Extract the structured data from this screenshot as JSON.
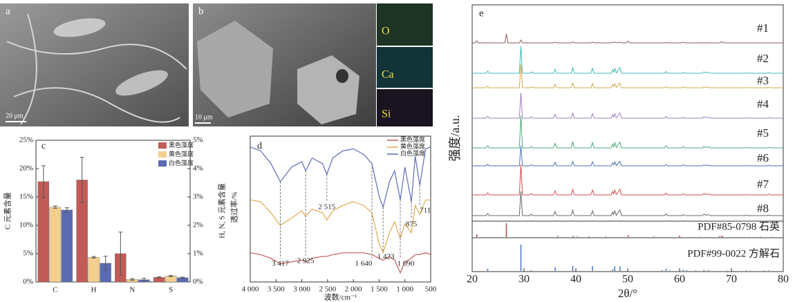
{
  "images": {
    "a": {
      "label": "a",
      "scale": "20 μm"
    },
    "b": {
      "label": "b",
      "scale": "10 μm",
      "maps": [
        "O",
        "Ca",
        "Si"
      ]
    }
  },
  "chart_data": [
    {
      "type": "bar",
      "label": "c",
      "categories": [
        "C",
        "H",
        "N",
        "S"
      ],
      "category_axis": [
        "y",
        "y2",
        "y2",
        "y2"
      ],
      "series": [
        {
          "name": "黑色藻席",
          "color": "#c25b56",
          "values": [
            17.7,
            3.6,
            1.0,
            0.16
          ],
          "errors": [
            2.8,
            0.8,
            0.76,
            0.02
          ]
        },
        {
          "name": "黄色藻席",
          "color": "#f3cf8e",
          "values": [
            13.2,
            0.87,
            0.09,
            0.21
          ],
          "errors": [
            0.2,
            0.03,
            0.03,
            0.02
          ]
        },
        {
          "name": "白色藻席",
          "color": "#5b6bb3",
          "values": [
            12.7,
            0.66,
            0.08,
            0.15
          ],
          "errors": [
            0.4,
            0.25,
            0.05,
            0.02
          ]
        }
      ],
      "ylabel": "C 元素含量",
      "y2label": "H, N, S 元素含量",
      "ylim": [
        0,
        25
      ],
      "yticks": [
        {
          "value": 0,
          "label": "0%"
        },
        {
          "value": 5,
          "label": "5%"
        },
        {
          "value": 10,
          "label": "10%"
        },
        {
          "value": 15,
          "label": "15%"
        },
        {
          "value": 20,
          "label": "20%"
        },
        {
          "value": 25,
          "label": "25%"
        }
      ],
      "y2lim": [
        0,
        5
      ],
      "y2ticks": [
        {
          "value": 0,
          "label": "0%"
        },
        {
          "value": 1,
          "label": "1%"
        },
        {
          "value": 2,
          "label": "2%"
        },
        {
          "value": 3,
          "label": "3%"
        },
        {
          "value": 4,
          "label": "4%"
        },
        {
          "value": 5,
          "label": "5%"
        }
      ]
    },
    {
      "type": "line",
      "label": "d",
      "x": [
        4000,
        3800,
        3600,
        3417,
        3200,
        3000,
        2925,
        2800,
        2600,
        2515,
        2400,
        2200,
        2000,
        1800,
        1640,
        1500,
        1423,
        1300,
        1200,
        1090,
        1000,
        875,
        800,
        711,
        600,
        500
      ],
      "series": [
        {
          "name": "黑色藻席",
          "color": "#c25b56",
          "values": [
            3.1,
            3.0,
            2.8,
            2.5,
            2.6,
            2.7,
            2.6,
            2.8,
            2.9,
            2.9,
            3.0,
            3.1,
            3.1,
            3.1,
            3.0,
            2.8,
            2.7,
            2.9,
            2.7,
            2.0,
            2.6,
            2.8,
            3.0,
            3.0,
            3.1,
            3.0
          ]
        },
        {
          "name": "黄色藻席",
          "color": "#e0a94e",
          "values": [
            6.0,
            5.9,
            5.3,
            4.6,
            5.0,
            5.4,
            5.1,
            5.5,
            5.3,
            4.9,
            5.4,
            5.7,
            5.9,
            5.7,
            5.3,
            3.6,
            3.1,
            4.2,
            4.8,
            3.9,
            4.7,
            4.2,
            5.7,
            5.2,
            6.0,
            6.0
          ]
        },
        {
          "name": "白色藻席",
          "color": "#5b6bb3",
          "values": [
            8.9,
            8.7,
            8.0,
            7.0,
            7.8,
            8.1,
            7.6,
            8.3,
            8.0,
            7.4,
            8.3,
            8.7,
            8.8,
            8.5,
            8.0,
            6.2,
            5.6,
            7.0,
            7.6,
            6.0,
            7.8,
            5.9,
            8.4,
            6.8,
            8.8,
            8.9
          ]
        }
      ],
      "xlim": [
        4000,
        500
      ],
      "ylim": [
        1.5,
        9.5
      ],
      "xticks": [
        {
          "value": 4000,
          "label": "4 000"
        },
        {
          "value": 3500,
          "label": "3 500"
        },
        {
          "value": 3000,
          "label": "3 000"
        },
        {
          "value": 2500,
          "label": "2 500"
        },
        {
          "value": 2000,
          "label": "2 000"
        },
        {
          "value": 1500,
          "label": "1 500"
        },
        {
          "value": 1000,
          "label": "1 000"
        },
        500
      ],
      "xlabel": "波数/cm⁻¹",
      "ylabel": "透过率/%",
      "annotations": [
        {
          "x": 3417,
          "label": "3 417"
        },
        {
          "x": 2925,
          "label": "2 925"
        },
        {
          "x": 2515,
          "label": "2 515"
        },
        {
          "x": 1640,
          "label": "1 640"
        },
        {
          "x": 1423,
          "label": "1 423"
        },
        {
          "x": 1090,
          "label": "1 090"
        },
        {
          "x": 875,
          "label": "875"
        },
        {
          "x": 711,
          "label": "711"
        }
      ]
    },
    {
      "type": "line",
      "label": "e",
      "x": [
        20,
        20.6,
        20.9,
        21.2,
        22.7,
        23.0,
        23.3,
        26.3,
        26.6,
        26.9,
        29.1,
        29.4,
        29.7,
        31.1,
        31.4,
        31.7,
        35.7,
        36.0,
        36.3,
        39.1,
        39.4,
        39.7,
        42.9,
        43.2,
        43.5,
        46.8,
        47.1,
        47.3,
        47.5,
        47.8,
        48.5,
        48.8,
        49.8,
        50.1,
        50.4,
        57.1,
        57.4,
        57.7,
        60.4,
        60.7,
        61.0,
        64.4,
        64.7,
        65.1,
        65.6,
        65.9,
        67.8,
        68.1,
        68.4,
        72.6,
        72.9,
        73.2,
        76.9,
        77.2,
        77.5,
        80
      ],
      "series": [
        {
          "name": "#1",
          "color": "#8b5a5a",
          "values": [
            2,
            2,
            8,
            2,
            2,
            3,
            2,
            2,
            28,
            2,
            2,
            10,
            2,
            2,
            2,
            2,
            2,
            4,
            2,
            2,
            5,
            2,
            2,
            4,
            2,
            2,
            4,
            3,
            4,
            2,
            4,
            2,
            2,
            7,
            2,
            2,
            3,
            2,
            2,
            4,
            2,
            2,
            3,
            2,
            2,
            2,
            2,
            6,
            2,
            2,
            2,
            2,
            2,
            2,
            2,
            2
          ]
        },
        {
          "name": "#2",
          "color": "#3fb8b8",
          "values": [
            2,
            2,
            2,
            2,
            2,
            8,
            2,
            2,
            2,
            2,
            2,
            80,
            2,
            2,
            6,
            2,
            2,
            14,
            2,
            2,
            18,
            2,
            2,
            16,
            2,
            2,
            12,
            5,
            16,
            3,
            18,
            2,
            2,
            2,
            2,
            2,
            7,
            2,
            2,
            5,
            2,
            2,
            6,
            3,
            5,
            2,
            2,
            2,
            2,
            2,
            3,
            2,
            2,
            4,
            2,
            2
          ]
        },
        {
          "name": "#3",
          "color": "#d4a84b",
          "values": [
            2,
            2,
            2,
            2,
            2,
            7,
            2,
            2,
            2,
            2,
            2,
            70,
            2,
            2,
            5,
            2,
            2,
            12,
            2,
            2,
            16,
            2,
            2,
            14,
            2,
            2,
            11,
            5,
            14,
            3,
            16,
            2,
            2,
            2,
            2,
            2,
            6,
            2,
            2,
            5,
            2,
            2,
            5,
            3,
            4,
            2,
            2,
            2,
            2,
            2,
            3,
            2,
            2,
            4,
            2,
            2
          ]
        },
        {
          "name": "#4",
          "color": "#9b7fc0",
          "values": [
            2,
            2,
            2,
            2,
            2,
            8,
            2,
            2,
            2,
            2,
            2,
            75,
            2,
            2,
            6,
            2,
            2,
            13,
            2,
            2,
            17,
            2,
            2,
            15,
            2,
            2,
            12,
            5,
            15,
            3,
            17,
            2,
            2,
            2,
            2,
            2,
            7,
            2,
            2,
            5,
            2,
            2,
            6,
            3,
            5,
            2,
            2,
            2,
            2,
            2,
            3,
            2,
            2,
            4,
            2,
            2
          ]
        },
        {
          "name": "#5",
          "color": "#4aa878",
          "values": [
            2,
            2,
            2,
            2,
            2,
            9,
            2,
            2,
            2,
            2,
            2,
            95,
            2,
            2,
            6,
            2,
            2,
            15,
            2,
            2,
            20,
            2,
            2,
            17,
            2,
            2,
            13,
            5,
            17,
            3,
            19,
            2,
            2,
            2,
            2,
            2,
            8,
            2,
            2,
            6,
            2,
            2,
            6,
            3,
            5,
            2,
            2,
            2,
            2,
            2,
            3,
            2,
            2,
            4,
            2,
            2
          ]
        },
        {
          "name": "#6",
          "color": "#4a6fb5",
          "values": [
            2,
            2,
            2,
            2,
            2,
            7,
            2,
            2,
            2,
            2,
            2,
            60,
            2,
            2,
            5,
            2,
            2,
            12,
            2,
            2,
            15,
            2,
            2,
            14,
            2,
            2,
            10,
            5,
            14,
            3,
            15,
            2,
            2,
            2,
            2,
            2,
            6,
            2,
            2,
            5,
            2,
            2,
            5,
            3,
            4,
            2,
            2,
            2,
            2,
            2,
            3,
            2,
            2,
            4,
            2,
            2
          ]
        },
        {
          "name": "#7",
          "color": "#d44a4a",
          "values": [
            2,
            2,
            2,
            2,
            2,
            8,
            2,
            2,
            2,
            2,
            2,
            90,
            2,
            2,
            6,
            2,
            2,
            14,
            2,
            2,
            18,
            2,
            2,
            16,
            2,
            2,
            12,
            5,
            16,
            3,
            18,
            2,
            2,
            2,
            2,
            2,
            7,
            2,
            2,
            5,
            2,
            2,
            6,
            3,
            5,
            2,
            2,
            2,
            2,
            2,
            3,
            2,
            2,
            4,
            2,
            2
          ]
        },
        {
          "name": "#8",
          "color": "#666666",
          "values": [
            2,
            2,
            2,
            2,
            2,
            8,
            2,
            2,
            2,
            2,
            2,
            72,
            2,
            2,
            6,
            2,
            2,
            14,
            2,
            2,
            18,
            2,
            2,
            16,
            2,
            2,
            12,
            5,
            16,
            3,
            18,
            2,
            2,
            2,
            2,
            2,
            7,
            2,
            2,
            5,
            2,
            2,
            6,
            3,
            5,
            2,
            2,
            2,
            2,
            2,
            3,
            2,
            2,
            4,
            2,
            2
          ]
        }
      ],
      "references": [
        {
          "name": "PDF#85-0798 石英",
          "color": "#b05050",
          "positions": [
            20.9,
            26.6,
            36.5,
            39.5,
            40.3,
            42.5,
            45.8,
            50.1,
            54.9,
            55.3,
            60.0,
            64.0,
            67.7,
            68.1,
            68.3,
            73.5,
            75.6,
            77.7,
            79.9
          ],
          "heights": [
            20,
            100,
            8,
            8,
            4,
            6,
            4,
            14,
            4,
            2,
            10,
            2,
            6,
            8,
            6,
            2,
            3,
            2,
            2
          ]
        },
        {
          "name": "PDF#99-0022 方解石",
          "color": "#4a7fbf",
          "positions": [
            23.0,
            29.4,
            31.4,
            36.0,
            39.4,
            43.2,
            47.1,
            47.5,
            48.5,
            56.6,
            57.4,
            58.1,
            60.7,
            61.4,
            63.1,
            64.7,
            65.6,
            69.2,
            70.3,
            72.9,
            73.7,
            76.3,
            77.2
          ],
          "heights": [
            8,
            100,
            3,
            14,
            18,
            18,
            6,
            17,
            17,
            3,
            8,
            2,
            5,
            3,
            2,
            4,
            3,
            1,
            1,
            2,
            1,
            2,
            2
          ]
        }
      ],
      "xlim": [
        20,
        80
      ],
      "xticks": [
        20,
        30,
        40,
        50,
        60,
        70,
        80
      ],
      "xlabel": "2θ/°",
      "ylabel": "强度/a.u."
    }
  ]
}
